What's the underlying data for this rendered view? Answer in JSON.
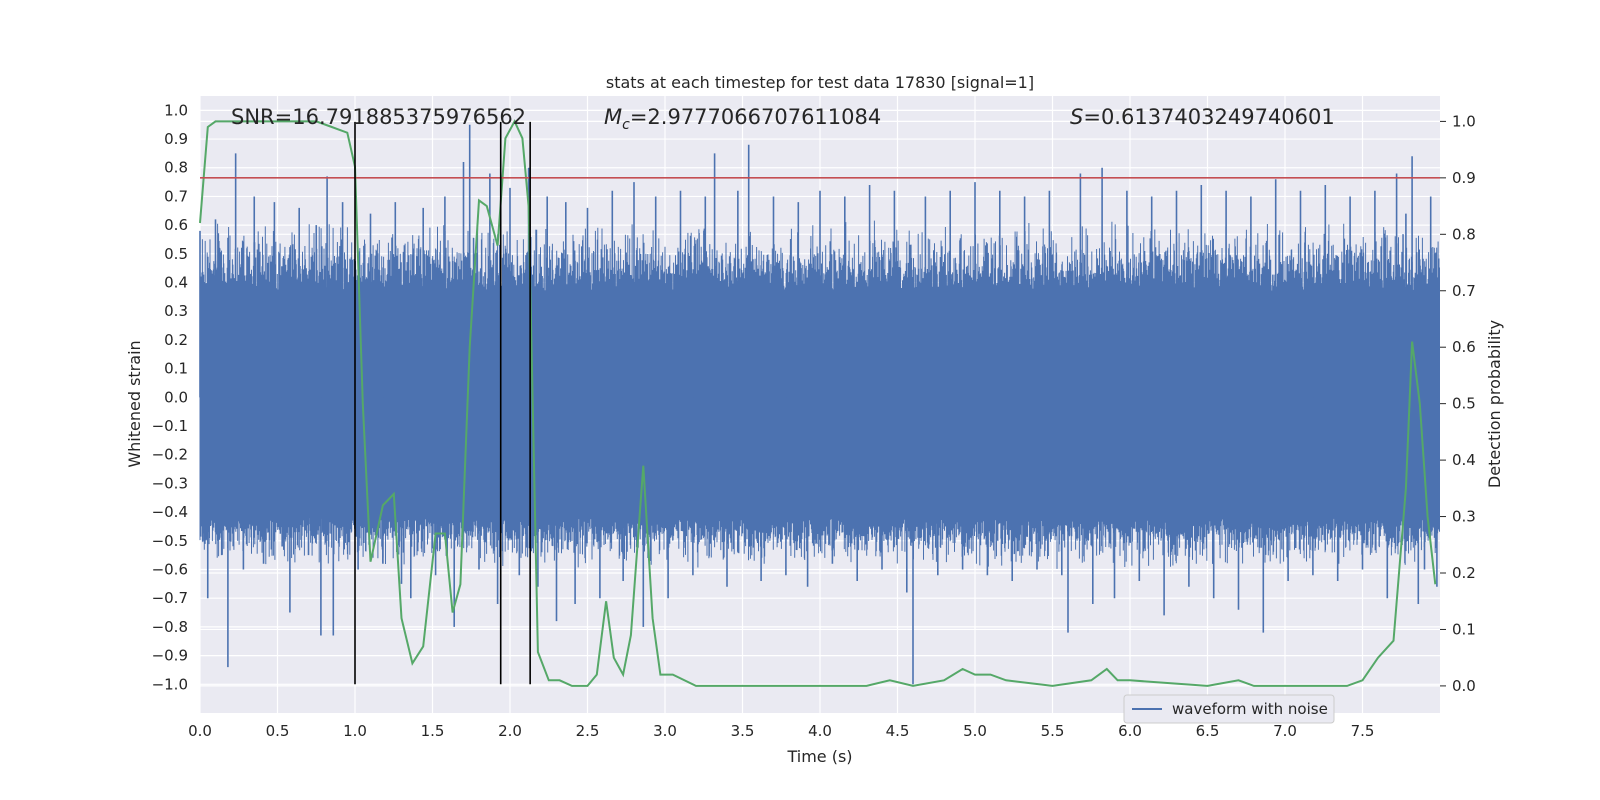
{
  "chart_data": {
    "type": "line",
    "title": "stats at each timestep for test data 17830 [signal=1]",
    "xlabel": "Time (s)",
    "ylabel": "Whitened strain",
    "ylabel_right": "Detection probability",
    "xlim": [
      0.0,
      8.0
    ],
    "ylim": [
      -1.1,
      1.05
    ],
    "ylim_right": [
      -0.048,
      1.045
    ],
    "x_ticks": [
      "0.0",
      "0.5",
      "1.0",
      "1.5",
      "2.0",
      "2.5",
      "3.0",
      "3.5",
      "4.0",
      "4.5",
      "5.0",
      "5.5",
      "6.0",
      "6.5",
      "7.0",
      "7.5"
    ],
    "y_ticks": [
      "1.0",
      "0.9",
      "0.8",
      "0.7",
      "0.6",
      "0.5",
      "0.4",
      "0.3",
      "0.2",
      "0.1",
      "0.0",
      "-0.1",
      "-0.2",
      "-0.3",
      "-0.4",
      "-0.5",
      "-0.6",
      "-0.7",
      "-0.8",
      "-0.9",
      "-1.0"
    ],
    "y_ticks_right": [
      "1.0",
      "0.9",
      "0.8",
      "0.7",
      "0.6",
      "0.5",
      "0.4",
      "0.3",
      "0.2",
      "0.1",
      "0.0"
    ],
    "annotations": {
      "snr": "SNR=16.791885375976562",
      "mc_symbol": "M",
      "mc_sub": "c",
      "mc_value": "=2.9777066707611084",
      "s_symbol": "S",
      "s_value": "=0.6137403249740601"
    },
    "threshold": {
      "value": 0.9,
      "axis": "right",
      "color": "#c44e52"
    },
    "vertical_lines": [
      {
        "x": 1.0,
        "y_from": -1.0,
        "y_to": 0.96
      },
      {
        "x": 1.94,
        "y_from": -1.0,
        "y_to": 0.96
      },
      {
        "x": 2.13,
        "y_from": -1.0,
        "y_to": 0.96
      }
    ],
    "series": [
      {
        "name": "waveform with noise",
        "axis": "left",
        "color": "#4c72b0",
        "style": "dense noise band",
        "core_band": [
          -0.42,
          0.37
        ],
        "typical_band": [
          -0.55,
          0.55
        ],
        "spikes": [
          [
            0.0,
            0.58
          ],
          [
            0.02,
            -0.5
          ],
          [
            0.05,
            -0.7
          ],
          [
            0.1,
            0.62
          ],
          [
            0.14,
            -0.55
          ],
          [
            0.18,
            -0.94
          ],
          [
            0.23,
            0.85
          ],
          [
            0.28,
            -0.6
          ],
          [
            0.35,
            0.7
          ],
          [
            0.41,
            -0.58
          ],
          [
            0.48,
            0.68
          ],
          [
            0.53,
            -0.52
          ],
          [
            0.58,
            -0.75
          ],
          [
            0.64,
            0.66
          ],
          [
            0.7,
            -0.55
          ],
          [
            0.75,
            0.6
          ],
          [
            0.78,
            -0.83
          ],
          [
            0.82,
            0.77
          ],
          [
            0.86,
            -0.83
          ],
          [
            0.92,
            0.68
          ],
          [
            1.02,
            -0.6
          ],
          [
            1.1,
            0.64
          ],
          [
            1.18,
            -0.58
          ],
          [
            1.26,
            0.68
          ],
          [
            1.3,
            -0.65
          ],
          [
            1.36,
            -0.7
          ],
          [
            1.44,
            0.66
          ],
          [
            1.52,
            -0.62
          ],
          [
            1.58,
            0.7
          ],
          [
            1.64,
            -0.8
          ],
          [
            1.7,
            0.82
          ],
          [
            1.74,
            0.95
          ],
          [
            1.8,
            -0.6
          ],
          [
            1.87,
            0.78
          ],
          [
            1.92,
            -0.72
          ],
          [
            2.0,
            0.73
          ],
          [
            2.06,
            -0.62
          ],
          [
            2.12,
            0.8
          ],
          [
            2.18,
            -0.66
          ],
          [
            2.24,
            0.7
          ],
          [
            2.3,
            -0.78
          ],
          [
            2.36,
            0.68
          ],
          [
            2.42,
            -0.72
          ],
          [
            2.5,
            0.66
          ],
          [
            2.58,
            -0.7
          ],
          [
            2.66,
            0.72
          ],
          [
            2.73,
            -0.64
          ],
          [
            2.8,
            0.75
          ],
          [
            2.86,
            -0.8
          ],
          [
            2.94,
            0.7
          ],
          [
            3.02,
            -0.7
          ],
          [
            3.1,
            0.72
          ],
          [
            3.18,
            -0.62
          ],
          [
            3.26,
            0.7
          ],
          [
            3.32,
            0.85
          ],
          [
            3.4,
            -0.66
          ],
          [
            3.47,
            0.72
          ],
          [
            3.54,
            0.88
          ],
          [
            3.62,
            -0.64
          ],
          [
            3.7,
            0.7
          ],
          [
            3.78,
            -0.62
          ],
          [
            3.86,
            0.68
          ],
          [
            3.92,
            -0.66
          ],
          [
            4.0,
            0.72
          ],
          [
            4.08,
            -0.58
          ],
          [
            4.16,
            0.7
          ],
          [
            4.24,
            -0.64
          ],
          [
            4.32,
            0.74
          ],
          [
            4.4,
            -0.6
          ],
          [
            4.48,
            0.72
          ],
          [
            4.56,
            -0.68
          ],
          [
            4.6,
            -1.0
          ],
          [
            4.68,
            0.7
          ],
          [
            4.76,
            -0.62
          ],
          [
            4.84,
            0.72
          ],
          [
            4.92,
            -0.6
          ],
          [
            5.0,
            0.75
          ],
          [
            5.08,
            -0.62
          ],
          [
            5.16,
            0.72
          ],
          [
            5.24,
            -0.64
          ],
          [
            5.32,
            0.7
          ],
          [
            5.4,
            -0.6
          ],
          [
            5.48,
            0.72
          ],
          [
            5.56,
            -0.62
          ],
          [
            5.6,
            -0.82
          ],
          [
            5.68,
            0.78
          ],
          [
            5.76,
            -0.72
          ],
          [
            5.82,
            0.8
          ],
          [
            5.9,
            -0.7
          ],
          [
            5.98,
            0.72
          ],
          [
            6.06,
            -0.64
          ],
          [
            6.14,
            0.7
          ],
          [
            6.22,
            -0.76
          ],
          [
            6.3,
            0.72
          ],
          [
            6.38,
            -0.66
          ],
          [
            6.46,
            0.74
          ],
          [
            6.54,
            -0.7
          ],
          [
            6.62,
            0.72
          ],
          [
            6.7,
            -0.74
          ],
          [
            6.78,
            0.7
          ],
          [
            6.86,
            -0.82
          ],
          [
            6.94,
            0.76
          ],
          [
            7.02,
            -0.64
          ],
          [
            7.1,
            0.72
          ],
          [
            7.18,
            -0.62
          ],
          [
            7.26,
            0.74
          ],
          [
            7.34,
            -0.64
          ],
          [
            7.42,
            0.7
          ],
          [
            7.5,
            -0.6
          ],
          [
            7.58,
            0.72
          ],
          [
            7.66,
            -0.7
          ],
          [
            7.72,
            0.78
          ],
          [
            7.78,
            0.64
          ],
          [
            7.82,
            0.84
          ],
          [
            7.86,
            -0.72
          ],
          [
            7.9,
            -0.6
          ],
          [
            7.94,
            0.7
          ],
          [
            7.98,
            -0.66
          ]
        ]
      },
      {
        "name": "detection probability",
        "axis": "right",
        "color": "#55a868",
        "points": [
          [
            0.0,
            0.82
          ],
          [
            0.05,
            0.99
          ],
          [
            0.1,
            1.0
          ],
          [
            0.3,
            1.0
          ],
          [
            0.5,
            1.0
          ],
          [
            0.75,
            1.0
          ],
          [
            0.85,
            0.99
          ],
          [
            0.95,
            0.98
          ],
          [
            1.0,
            0.92
          ],
          [
            1.05,
            0.5
          ],
          [
            1.1,
            0.22
          ],
          [
            1.18,
            0.32
          ],
          [
            1.25,
            0.34
          ],
          [
            1.3,
            0.12
          ],
          [
            1.37,
            0.04
          ],
          [
            1.44,
            0.07
          ],
          [
            1.52,
            0.27
          ],
          [
            1.58,
            0.27
          ],
          [
            1.63,
            0.13
          ],
          [
            1.68,
            0.18
          ],
          [
            1.74,
            0.6
          ],
          [
            1.8,
            0.86
          ],
          [
            1.85,
            0.85
          ],
          [
            1.92,
            0.78
          ],
          [
            1.97,
            0.97
          ],
          [
            2.03,
            1.0
          ],
          [
            2.08,
            0.97
          ],
          [
            2.12,
            0.85
          ],
          [
            2.18,
            0.06
          ],
          [
            2.25,
            0.01
          ],
          [
            2.32,
            0.01
          ],
          [
            2.4,
            0.0
          ],
          [
            2.5,
            0.0
          ],
          [
            2.56,
            0.02
          ],
          [
            2.62,
            0.15
          ],
          [
            2.67,
            0.05
          ],
          [
            2.73,
            0.02
          ],
          [
            2.78,
            0.09
          ],
          [
            2.86,
            0.39
          ],
          [
            2.92,
            0.12
          ],
          [
            2.97,
            0.02
          ],
          [
            3.05,
            0.02
          ],
          [
            3.2,
            0.0
          ],
          [
            3.5,
            0.0
          ],
          [
            3.8,
            0.0
          ],
          [
            4.0,
            0.0
          ],
          [
            4.3,
            0.0
          ],
          [
            4.45,
            0.01
          ],
          [
            4.6,
            0.0
          ],
          [
            4.8,
            0.01
          ],
          [
            4.92,
            0.03
          ],
          [
            5.0,
            0.02
          ],
          [
            5.1,
            0.02
          ],
          [
            5.2,
            0.01
          ],
          [
            5.5,
            0.0
          ],
          [
            5.75,
            0.01
          ],
          [
            5.85,
            0.03
          ],
          [
            5.92,
            0.01
          ],
          [
            6.0,
            0.01
          ],
          [
            6.5,
            0.0
          ],
          [
            6.7,
            0.01
          ],
          [
            6.8,
            0.0
          ],
          [
            7.0,
            0.0
          ],
          [
            7.4,
            0.0
          ],
          [
            7.5,
            0.01
          ],
          [
            7.6,
            0.05
          ],
          [
            7.7,
            0.08
          ],
          [
            7.78,
            0.35
          ],
          [
            7.82,
            0.61
          ],
          [
            7.87,
            0.5
          ],
          [
            7.92,
            0.3
          ],
          [
            7.97,
            0.18
          ]
        ]
      }
    ],
    "legend": {
      "position": "lower-right",
      "entries": [
        "waveform with noise"
      ]
    }
  }
}
